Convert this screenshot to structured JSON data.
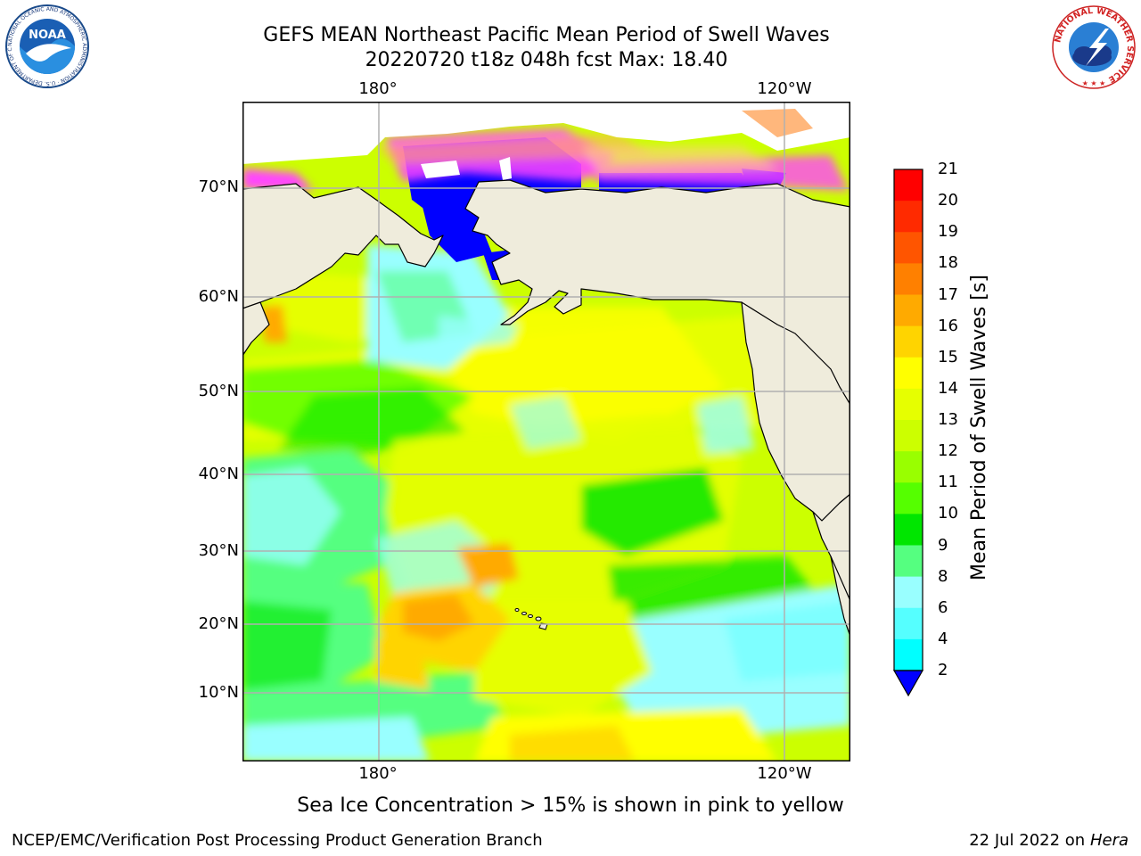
{
  "title": {
    "line1": "GEFS MEAN Northeast Pacific Mean Period of Swell Waves",
    "line2": "20220720 t18z 048h fcst   Max: 18.40"
  },
  "logos": {
    "noaa": {
      "text": "NOAA",
      "ring_text": "NATIONAL OCEANIC AND ATMOSPHERIC ADMINISTRATION · U.S. DEPARTMENT OF COMMERCE"
    },
    "nws": {
      "ring_text": "NATIONAL WEATHER SERVICE"
    }
  },
  "map": {
    "lat_labels": [
      "70°N",
      "60°N",
      "50°N",
      "40°N",
      "30°N",
      "20°N",
      "10°N"
    ],
    "lon_labels_top": [
      "180°",
      "120°W"
    ],
    "lon_labels_bottom": [
      "180°",
      "120°W"
    ],
    "colors": {
      "land": "#efecdc",
      "ocean_base": "#ccff00",
      "grid": "#b0b0b0",
      "coast": "#000000"
    }
  },
  "colorbar": {
    "title": "Mean Period of Swell Waves [s]",
    "levels": [
      "21",
      "20",
      "19",
      "18",
      "17",
      "16",
      "15",
      "14",
      "13",
      "12",
      "11",
      "10",
      "9",
      "8",
      "6",
      "4",
      "2"
    ],
    "bin_colors": [
      "#ff0000",
      "#ff2a00",
      "#ff5500",
      "#ff8000",
      "#ffaa00",
      "#ffd400",
      "#ffff00",
      "#e6ff00",
      "#ccff00",
      "#99ff00",
      "#55ff00",
      "#00e600",
      "#55ff80",
      "#99ffff",
      "#55ffff",
      "#00ffff",
      "#00c8ff",
      "#0078ff"
    ],
    "extend_color": "#0000ff"
  },
  "note": "Sea Ice Concentration > 15% is shown in pink to yellow",
  "footer": {
    "left": "NCEP/EMC/Verification Post Processing Product Generation Branch",
    "right_prefix": "22 Jul 2022 on",
    "right_host": "Hera"
  }
}
